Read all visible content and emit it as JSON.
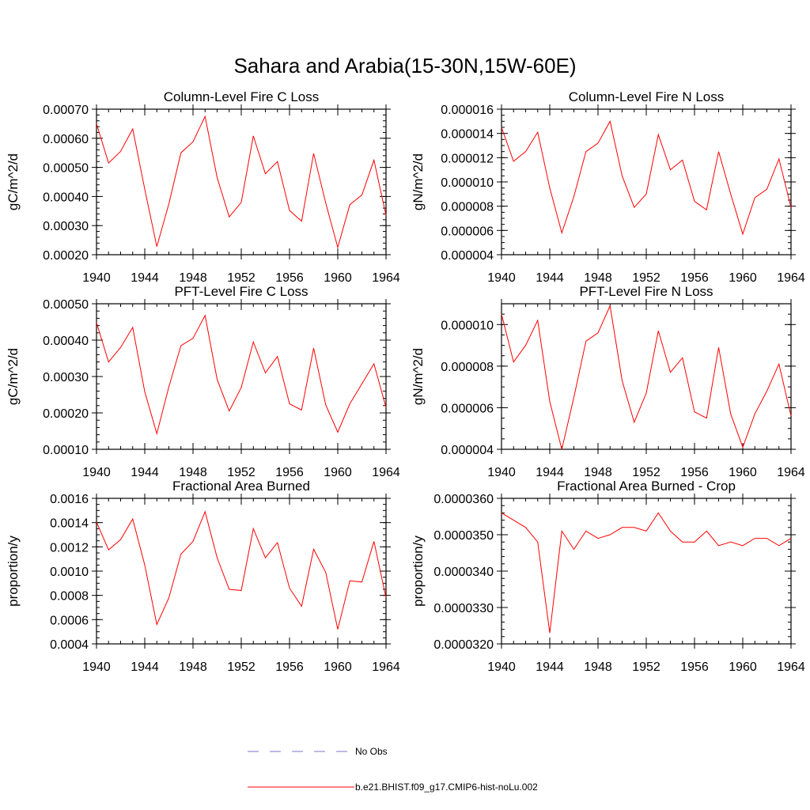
{
  "title": "Sahara and Arabia(15-30N,15W-60E)",
  "colors": {
    "model_line": "#ff0000",
    "obs_line": "#7777cc",
    "axes": "#000000"
  },
  "legend": [
    {
      "label": "No Obs",
      "style": "dashed",
      "color": "#7777cc"
    },
    {
      "label": "b.e21.BHIST.f09_g17.CMIP6-hist-noLu.002",
      "style": "solid",
      "color": "#ff0000"
    }
  ],
  "chart_data": [
    {
      "type": "line",
      "title": "Column-Level Fire C Loss",
      "ylabel": "gC/m^2/d",
      "xlim": [
        1940,
        1964
      ],
      "ylim": [
        0.0002,
        0.0007
      ],
      "xticks": [
        1940,
        1944,
        1948,
        1952,
        1956,
        1960,
        1964
      ],
      "yticks": [
        0.0002,
        0.0003,
        0.0004,
        0.0005,
        0.0006,
        0.0007
      ],
      "ytick_labels": [
        "0.00020",
        "0.00030",
        "0.00040",
        "0.00050",
        "0.00060",
        "0.00070"
      ],
      "yminor": 2e-05,
      "x": [
        1940,
        1941,
        1942,
        1943,
        1944,
        1945,
        1946,
        1947,
        1948,
        1949,
        1950,
        1951,
        1952,
        1953,
        1954,
        1955,
        1956,
        1957,
        1958,
        1959,
        1960,
        1961,
        1962,
        1963,
        1964
      ],
      "series": [
        {
          "values": [
            0.00065,
            0.000515,
            0.000555,
            0.000632,
            0.000425,
            0.000228,
            0.000375,
            0.00055,
            0.000588,
            0.000675,
            0.000465,
            0.00033,
            0.00038,
            0.000608,
            0.000478,
            0.00052,
            0.000352,
            0.000315,
            0.000548,
            0.000378,
            0.000225,
            0.000372,
            0.000405,
            0.000525,
            0.000335
          ]
        }
      ]
    },
    {
      "type": "line",
      "title": "Column-Level Fire N Loss",
      "ylabel": "gN/m^2/d",
      "xlim": [
        1940,
        1964
      ],
      "ylim": [
        4e-06,
        1.6e-05
      ],
      "xticks": [
        1940,
        1944,
        1948,
        1952,
        1956,
        1960,
        1964
      ],
      "yticks": [
        4e-06,
        6e-06,
        8e-06,
        1e-05,
        1.2e-05,
        1.4e-05,
        1.6e-05
      ],
      "ytick_labels": [
        "0.000004",
        "0.000006",
        "0.000008",
        "0.000010",
        "0.000012",
        "0.000014",
        "0.000016"
      ],
      "yminor": 5e-07,
      "x": [
        1940,
        1941,
        1942,
        1943,
        1944,
        1945,
        1946,
        1947,
        1948,
        1949,
        1950,
        1951,
        1952,
        1953,
        1954,
        1955,
        1956,
        1957,
        1958,
        1959,
        1960,
        1961,
        1962,
        1963,
        1964
      ],
      "series": [
        {
          "values": [
            1.45e-05,
            1.17e-05,
            1.25e-05,
            1.41e-05,
            9.5e-06,
            5.8e-06,
            8.8e-06,
            1.25e-05,
            1.32e-05,
            1.5e-05,
            1.05e-05,
            7.9e-06,
            9e-06,
            1.39e-05,
            1.1e-05,
            1.18e-05,
            8.4e-06,
            7.7e-06,
            1.25e-05,
            9e-06,
            5.7e-06,
            8.7e-06,
            9.4e-06,
            1.19e-05,
            7.9e-06
          ]
        }
      ]
    },
    {
      "type": "line",
      "title": "PFT-Level Fire C Loss",
      "ylabel": "gC/m^2/d",
      "xlim": [
        1940,
        1964
      ],
      "ylim": [
        0.0001,
        0.0005
      ],
      "xticks": [
        1940,
        1944,
        1948,
        1952,
        1956,
        1960,
        1964
      ],
      "yticks": [
        0.0001,
        0.0002,
        0.0003,
        0.0004,
        0.0005
      ],
      "ytick_labels": [
        "0.00010",
        "0.00020",
        "0.00030",
        "0.00040",
        "0.00050"
      ],
      "yminor": 2e-05,
      "x": [
        1940,
        1941,
        1942,
        1943,
        1944,
        1945,
        1946,
        1947,
        1948,
        1949,
        1950,
        1951,
        1952,
        1953,
        1954,
        1955,
        1956,
        1957,
        1958,
        1959,
        1960,
        1961,
        1962,
        1963,
        1964
      ],
      "series": [
        {
          "values": [
            0.000448,
            0.00034,
            0.00038,
            0.000435,
            0.000258,
            0.000143,
            0.000272,
            0.000385,
            0.000405,
            0.000468,
            0.000292,
            0.000205,
            0.00027,
            0.000395,
            0.00031,
            0.000355,
            0.000225,
            0.000208,
            0.000378,
            0.000222,
            0.000147,
            0.000225,
            0.00028,
            0.000335,
            0.000215
          ]
        }
      ]
    },
    {
      "type": "line",
      "title": "PFT-Level Fire N Loss",
      "ylabel": "gN/m^2/d",
      "xlim": [
        1940,
        1964
      ],
      "ylim": [
        4e-06,
        1.1e-05
      ],
      "xticks": [
        1940,
        1944,
        1948,
        1952,
        1956,
        1960,
        1964
      ],
      "yticks": [
        4e-06,
        6e-06,
        8e-06,
        1e-05
      ],
      "ytick_labels": [
        "0.000004",
        "0.000006",
        "0.000008",
        "0.000010"
      ],
      "yminor": 5e-07,
      "x": [
        1940,
        1941,
        1942,
        1943,
        1944,
        1945,
        1946,
        1947,
        1948,
        1949,
        1950,
        1951,
        1952,
        1953,
        1954,
        1955,
        1956,
        1957,
        1958,
        1959,
        1960,
        1961,
        1962,
        1963,
        1964
      ],
      "series": [
        {
          "values": [
            1.05e-05,
            8.2e-06,
            9e-06,
            1.02e-05,
            6.3e-06,
            4e-06,
            6.5e-06,
            9.2e-06,
            9.6e-06,
            1.09e-05,
            7.3e-06,
            5.3e-06,
            6.7e-06,
            9.7e-06,
            7.7e-06,
            8.4e-06,
            5.8e-06,
            5.5e-06,
            8.9e-06,
            5.7e-06,
            4.1e-06,
            5.7e-06,
            6.8e-06,
            8.1e-06,
            5.6e-06
          ]
        }
      ]
    },
    {
      "type": "line",
      "title": "Fractional Area Burned",
      "ylabel": "proportion/y",
      "xlim": [
        1940,
        1964
      ],
      "ylim": [
        0.0004,
        0.0016
      ],
      "xticks": [
        1940,
        1944,
        1948,
        1952,
        1956,
        1960,
        1964
      ],
      "yticks": [
        0.0004,
        0.0006,
        0.0008,
        0.001,
        0.0012,
        0.0014,
        0.0016
      ],
      "ytick_labels": [
        "0.0004",
        "0.0006",
        "0.0008",
        "0.0010",
        "0.0012",
        "0.0014",
        "0.0016"
      ],
      "yminor": 5e-05,
      "x": [
        1940,
        1941,
        1942,
        1943,
        1944,
        1945,
        1946,
        1947,
        1948,
        1949,
        1950,
        1951,
        1952,
        1953,
        1954,
        1955,
        1956,
        1957,
        1958,
        1959,
        1960,
        1961,
        1962,
        1963,
        1964
      ],
      "series": [
        {
          "values": [
            0.001405,
            0.001175,
            0.00126,
            0.00143,
            0.00105,
            0.00056,
            0.00078,
            0.00114,
            0.001245,
            0.00149,
            0.00111,
            0.00085,
            0.00084,
            0.00135,
            0.00111,
            0.001235,
            0.00086,
            0.00071,
            0.00118,
            0.00099,
            0.00052,
            0.00092,
            0.00091,
            0.001245,
            0.00078
          ]
        }
      ]
    },
    {
      "type": "line",
      "title": "Fractional Area Burned - Crop",
      "ylabel": "proportion/y",
      "xlim": [
        1940,
        1964
      ],
      "ylim": [
        3.2e-05,
        3.6e-05
      ],
      "xticks": [
        1940,
        1944,
        1948,
        1952,
        1956,
        1960,
        1964
      ],
      "yticks": [
        3.2e-05,
        3.3e-05,
        3.4e-05,
        3.5e-05,
        3.6e-05
      ],
      "ytick_labels": [
        "0.0000320",
        "0.0000330",
        "0.0000340",
        "0.0000350",
        "0.0000360"
      ],
      "yminor": 2e-07,
      "x": [
        1940,
        1941,
        1942,
        1943,
        1944,
        1945,
        1946,
        1947,
        1948,
        1949,
        1950,
        1951,
        1952,
        1953,
        1954,
        1955,
        1956,
        1957,
        1958,
        1959,
        1960,
        1961,
        1962,
        1963,
        1964
      ],
      "series": [
        {
          "values": [
            3.56e-05,
            3.54e-05,
            3.52e-05,
            3.48e-05,
            3.23e-05,
            3.51e-05,
            3.46e-05,
            3.51e-05,
            3.49e-05,
            3.5e-05,
            3.52e-05,
            3.52e-05,
            3.51e-05,
            3.56e-05,
            3.51e-05,
            3.48e-05,
            3.48e-05,
            3.51e-05,
            3.47e-05,
            3.48e-05,
            3.47e-05,
            3.49e-05,
            3.49e-05,
            3.47e-05,
            3.49e-05
          ]
        }
      ]
    }
  ]
}
